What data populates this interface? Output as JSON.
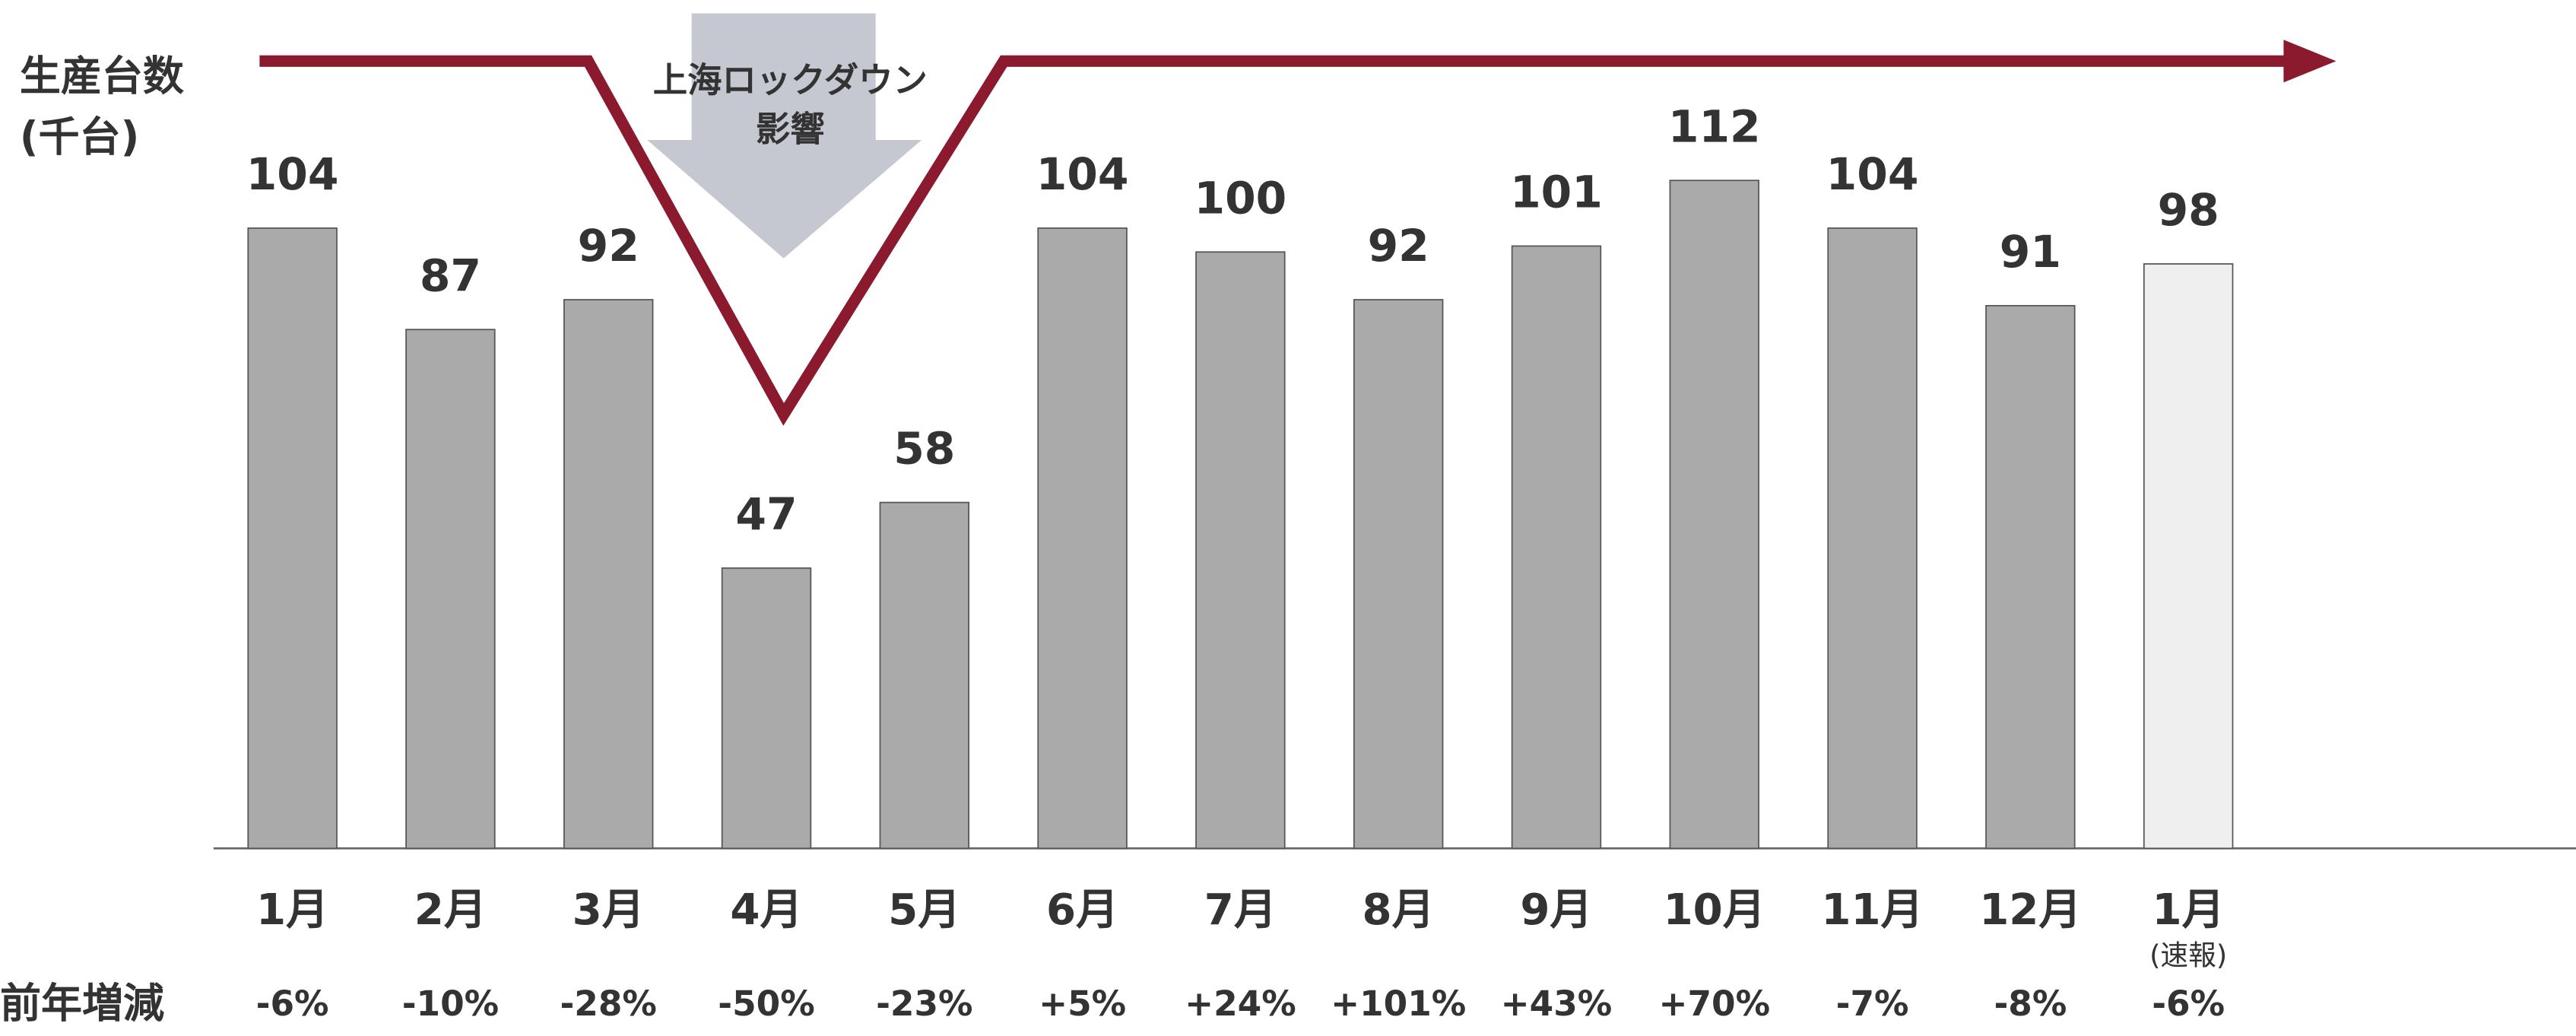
{
  "chart_data": {
    "type": "bar",
    "y_label": [
      "生産台数",
      "(千台)"
    ],
    "annotation": [
      "上海ロックダウン",
      "影響"
    ],
    "categories": [
      "1月",
      "2月",
      "3月",
      "4月",
      "5月",
      "6月",
      "7月",
      "8月",
      "9月",
      "10月",
      "11月",
      "12月",
      "1月"
    ],
    "last_note": "(速報)",
    "values": [
      104,
      87,
      92,
      47,
      58,
      104,
      100,
      92,
      101,
      112,
      104,
      91,
      98
    ],
    "colors": [
      "#aaaaaa",
      "#aaaaaa",
      "#aaaaaa",
      "#aaaaaa",
      "#aaaaaa",
      "#aaaaaa",
      "#aaaaaa",
      "#aaaaaa",
      "#aaaaaa",
      "#aaaaaa",
      "#aaaaaa",
      "#aaaaaa",
      "#efefef"
    ],
    "change_label": "前年増減",
    "changes": [
      "-6%",
      "-10%",
      "-28%",
      "-50%",
      "-23%",
      "+5%",
      "+24%",
      "+101%",
      "+43%",
      "+70%",
      "-7%",
      "-8%",
      "-6%"
    ],
    "ylim": [
      0,
      140
    ]
  }
}
